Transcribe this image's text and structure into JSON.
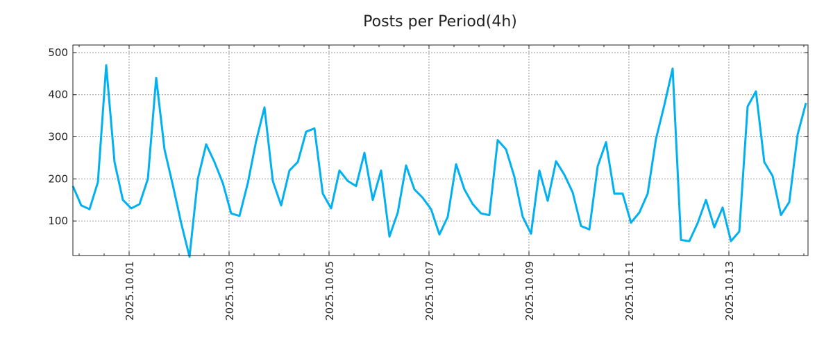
{
  "chart_data": {
    "type": "line",
    "title": "Posts per Period(4h)",
    "xlabel": "",
    "ylabel": "",
    "x_start": "2025-09-30 21:00",
    "interval_hours": 4,
    "series": [
      {
        "name": "posts",
        "color": "#00b0f0",
        "values": [
          183,
          137,
          128,
          192,
          470,
          240,
          150,
          130,
          140,
          200,
          440,
          270,
          185,
          95,
          15,
          200,
          282,
          240,
          190,
          118,
          112,
          190,
          290,
          370,
          195,
          137,
          220,
          240,
          312,
          320,
          165,
          130,
          220,
          195,
          183,
          262,
          150,
          220,
          63,
          120,
          232,
          175,
          155,
          128,
          68,
          110,
          235,
          175,
          140,
          118,
          114,
          292,
          270,
          205,
          110,
          70,
          220,
          148,
          242,
          210,
          168,
          88,
          80,
          230,
          287,
          165,
          165,
          96,
          120,
          165,
          295,
          375,
          462,
          55,
          52,
          95,
          150,
          85,
          132,
          52,
          75,
          372,
          408,
          240,
          207,
          114,
          145,
          305,
          380
        ]
      }
    ],
    "ylim": [
      18,
      518
    ],
    "y_ticks": [
      100,
      200,
      300,
      400,
      500
    ],
    "x_ticks": [
      {
        "label": "2025.10.01",
        "hours_from_start": 27
      },
      {
        "label": "2025.10.03",
        "hours_from_start": 75
      },
      {
        "label": "2025.10.05",
        "hours_from_start": 123
      },
      {
        "label": "2025.10.07",
        "hours_from_start": 171
      },
      {
        "label": "2025.10.09",
        "hours_from_start": 219
      },
      {
        "label": "2025.10.11",
        "hours_from_start": 267
      },
      {
        "label": "2025.10.13",
        "hours_from_start": 315
      }
    ],
    "x_minor_tick_hours": 12,
    "xlim_hours": [
      0,
      353
    ],
    "grid": true,
    "legend": "none"
  }
}
